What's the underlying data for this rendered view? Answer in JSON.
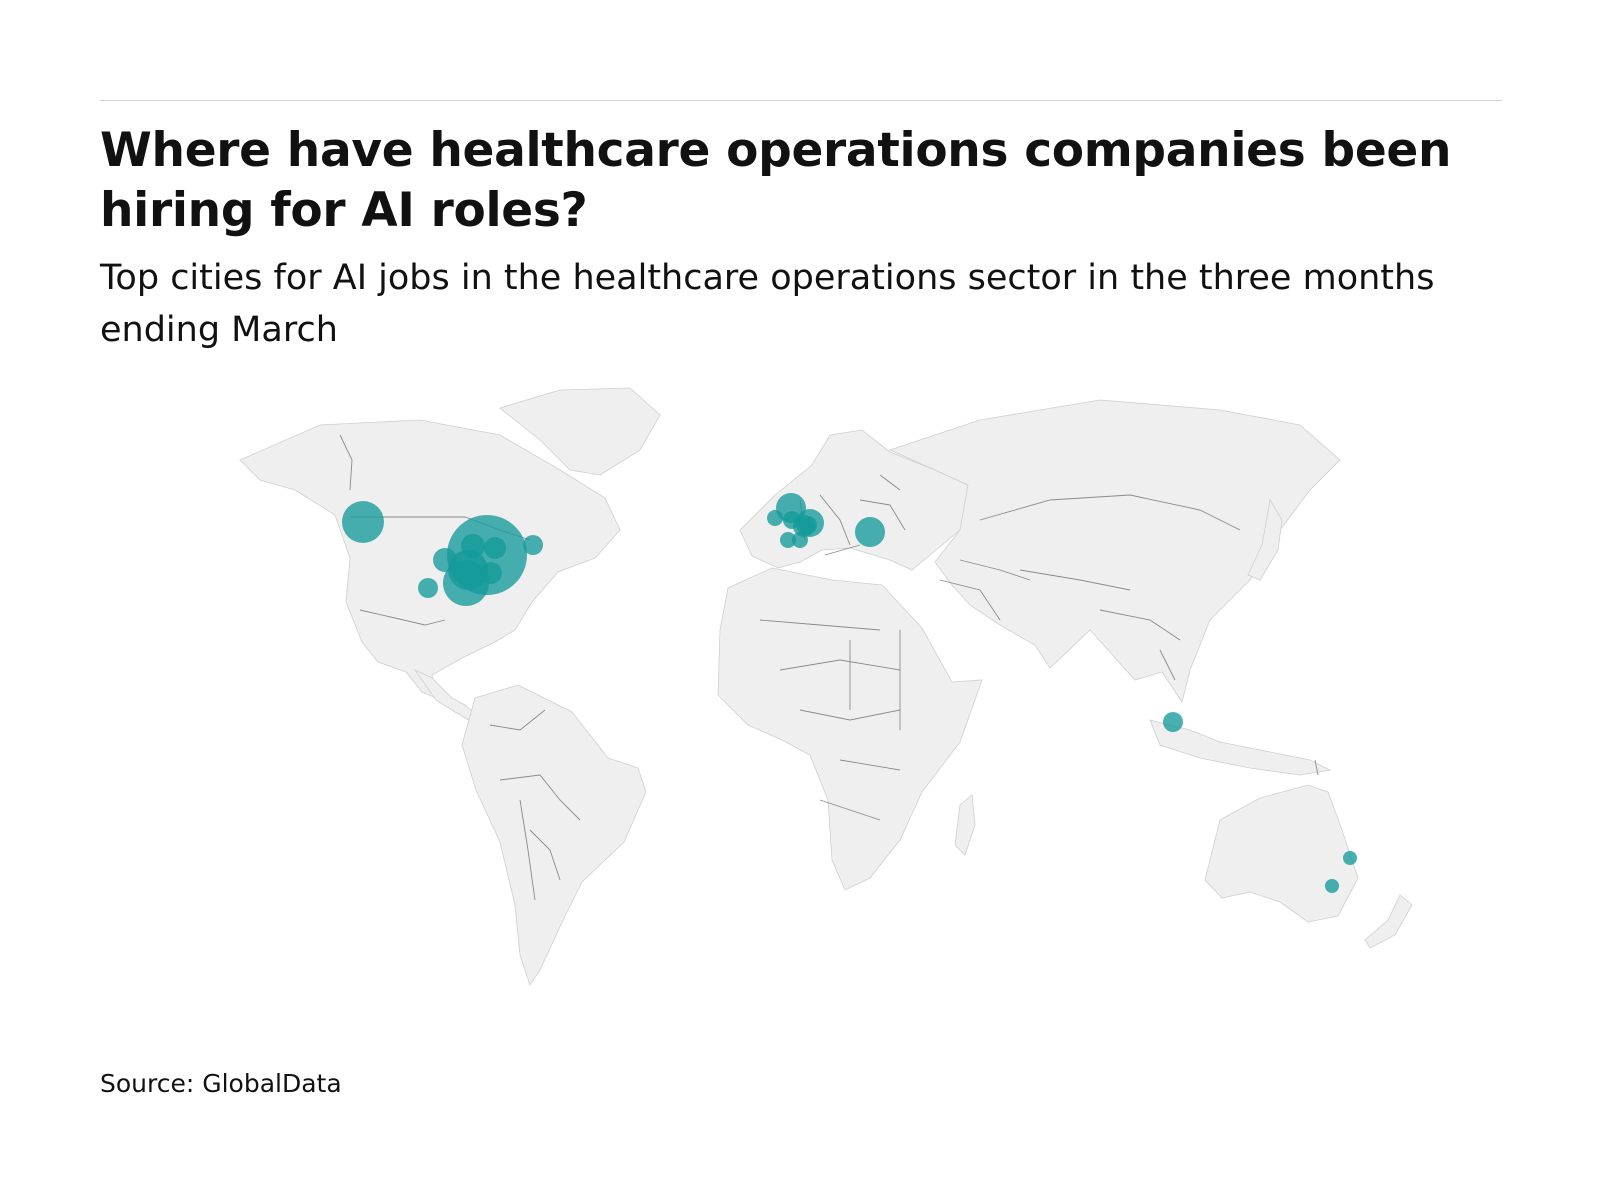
{
  "header": {
    "title": "Where have healthcare operations companies been hiring for AI roles?",
    "subtitle": "Top cities for AI jobs in the healthcare operations sector in the three months ending March"
  },
  "footer": {
    "source": "Source: GlobalData"
  },
  "colors": {
    "bubble": "#159a9a",
    "land": "#efefef",
    "border": "#8a8a8a",
    "rule": "#d2d2d2"
  },
  "chart_data": {
    "type": "scatter",
    "projection": "world map, bubble size encodes relative job count",
    "points": [
      {
        "lon": -87.7,
        "lat": 41.9,
        "rel_size": 1.0
      },
      {
        "lon": -122.3,
        "lat": 47.6,
        "rel_size": 0.53
      },
      {
        "lon": -97.7,
        "lat": 30.3,
        "rel_size": 0.57
      },
      {
        "lon": -96.8,
        "lat": 32.8,
        "rel_size": 0.5
      },
      {
        "lon": -93.3,
        "lat": 44.9,
        "rel_size": 0.3
      },
      {
        "lon": -90.1,
        "lat": 38.6,
        "rel_size": 0.3
      },
      {
        "lon": -106.6,
        "lat": 35.1,
        "rel_size": 0.3
      },
      {
        "lon": -84.4,
        "lat": 33.7,
        "rel_size": 0.3
      },
      {
        "lon": -104.9,
        "lat": 39.7,
        "rel_size": 0.27
      },
      {
        "lon": -112.1,
        "lat": 33.4,
        "rel_size": 0.25
      },
      {
        "lon": -71.1,
        "lat": 42.4,
        "rel_size": 0.27
      },
      {
        "lon": -0.1,
        "lat": 51.5,
        "rel_size": 0.4
      },
      {
        "lon": -6.3,
        "lat": 53.3,
        "rel_size": 0.2
      },
      {
        "lon": 2.3,
        "lat": 48.9,
        "rel_size": 0.27
      },
      {
        "lon": 8.7,
        "lat": 50.1,
        "rel_size": 0.33
      },
      {
        "lon": 11.6,
        "lat": 48.1,
        "rel_size": 0.25
      },
      {
        "lon": 4.9,
        "lat": 52.4,
        "rel_size": 0.25
      },
      {
        "lon": 8.5,
        "lat": 47.4,
        "rel_size": 0.22
      },
      {
        "lon": 2.2,
        "lat": 41.4,
        "rel_size": 0.22
      },
      {
        "lon": 26.1,
        "lat": 44.4,
        "rel_size": 0.4
      },
      {
        "lon": 103.8,
        "lat": 1.35,
        "rel_size": 0.27
      },
      {
        "lon": 153.0,
        "lat": -27.5,
        "rel_size": 0.2
      },
      {
        "lon": 151.2,
        "lat": -33.9,
        "rel_size": 0.2
      }
    ]
  }
}
